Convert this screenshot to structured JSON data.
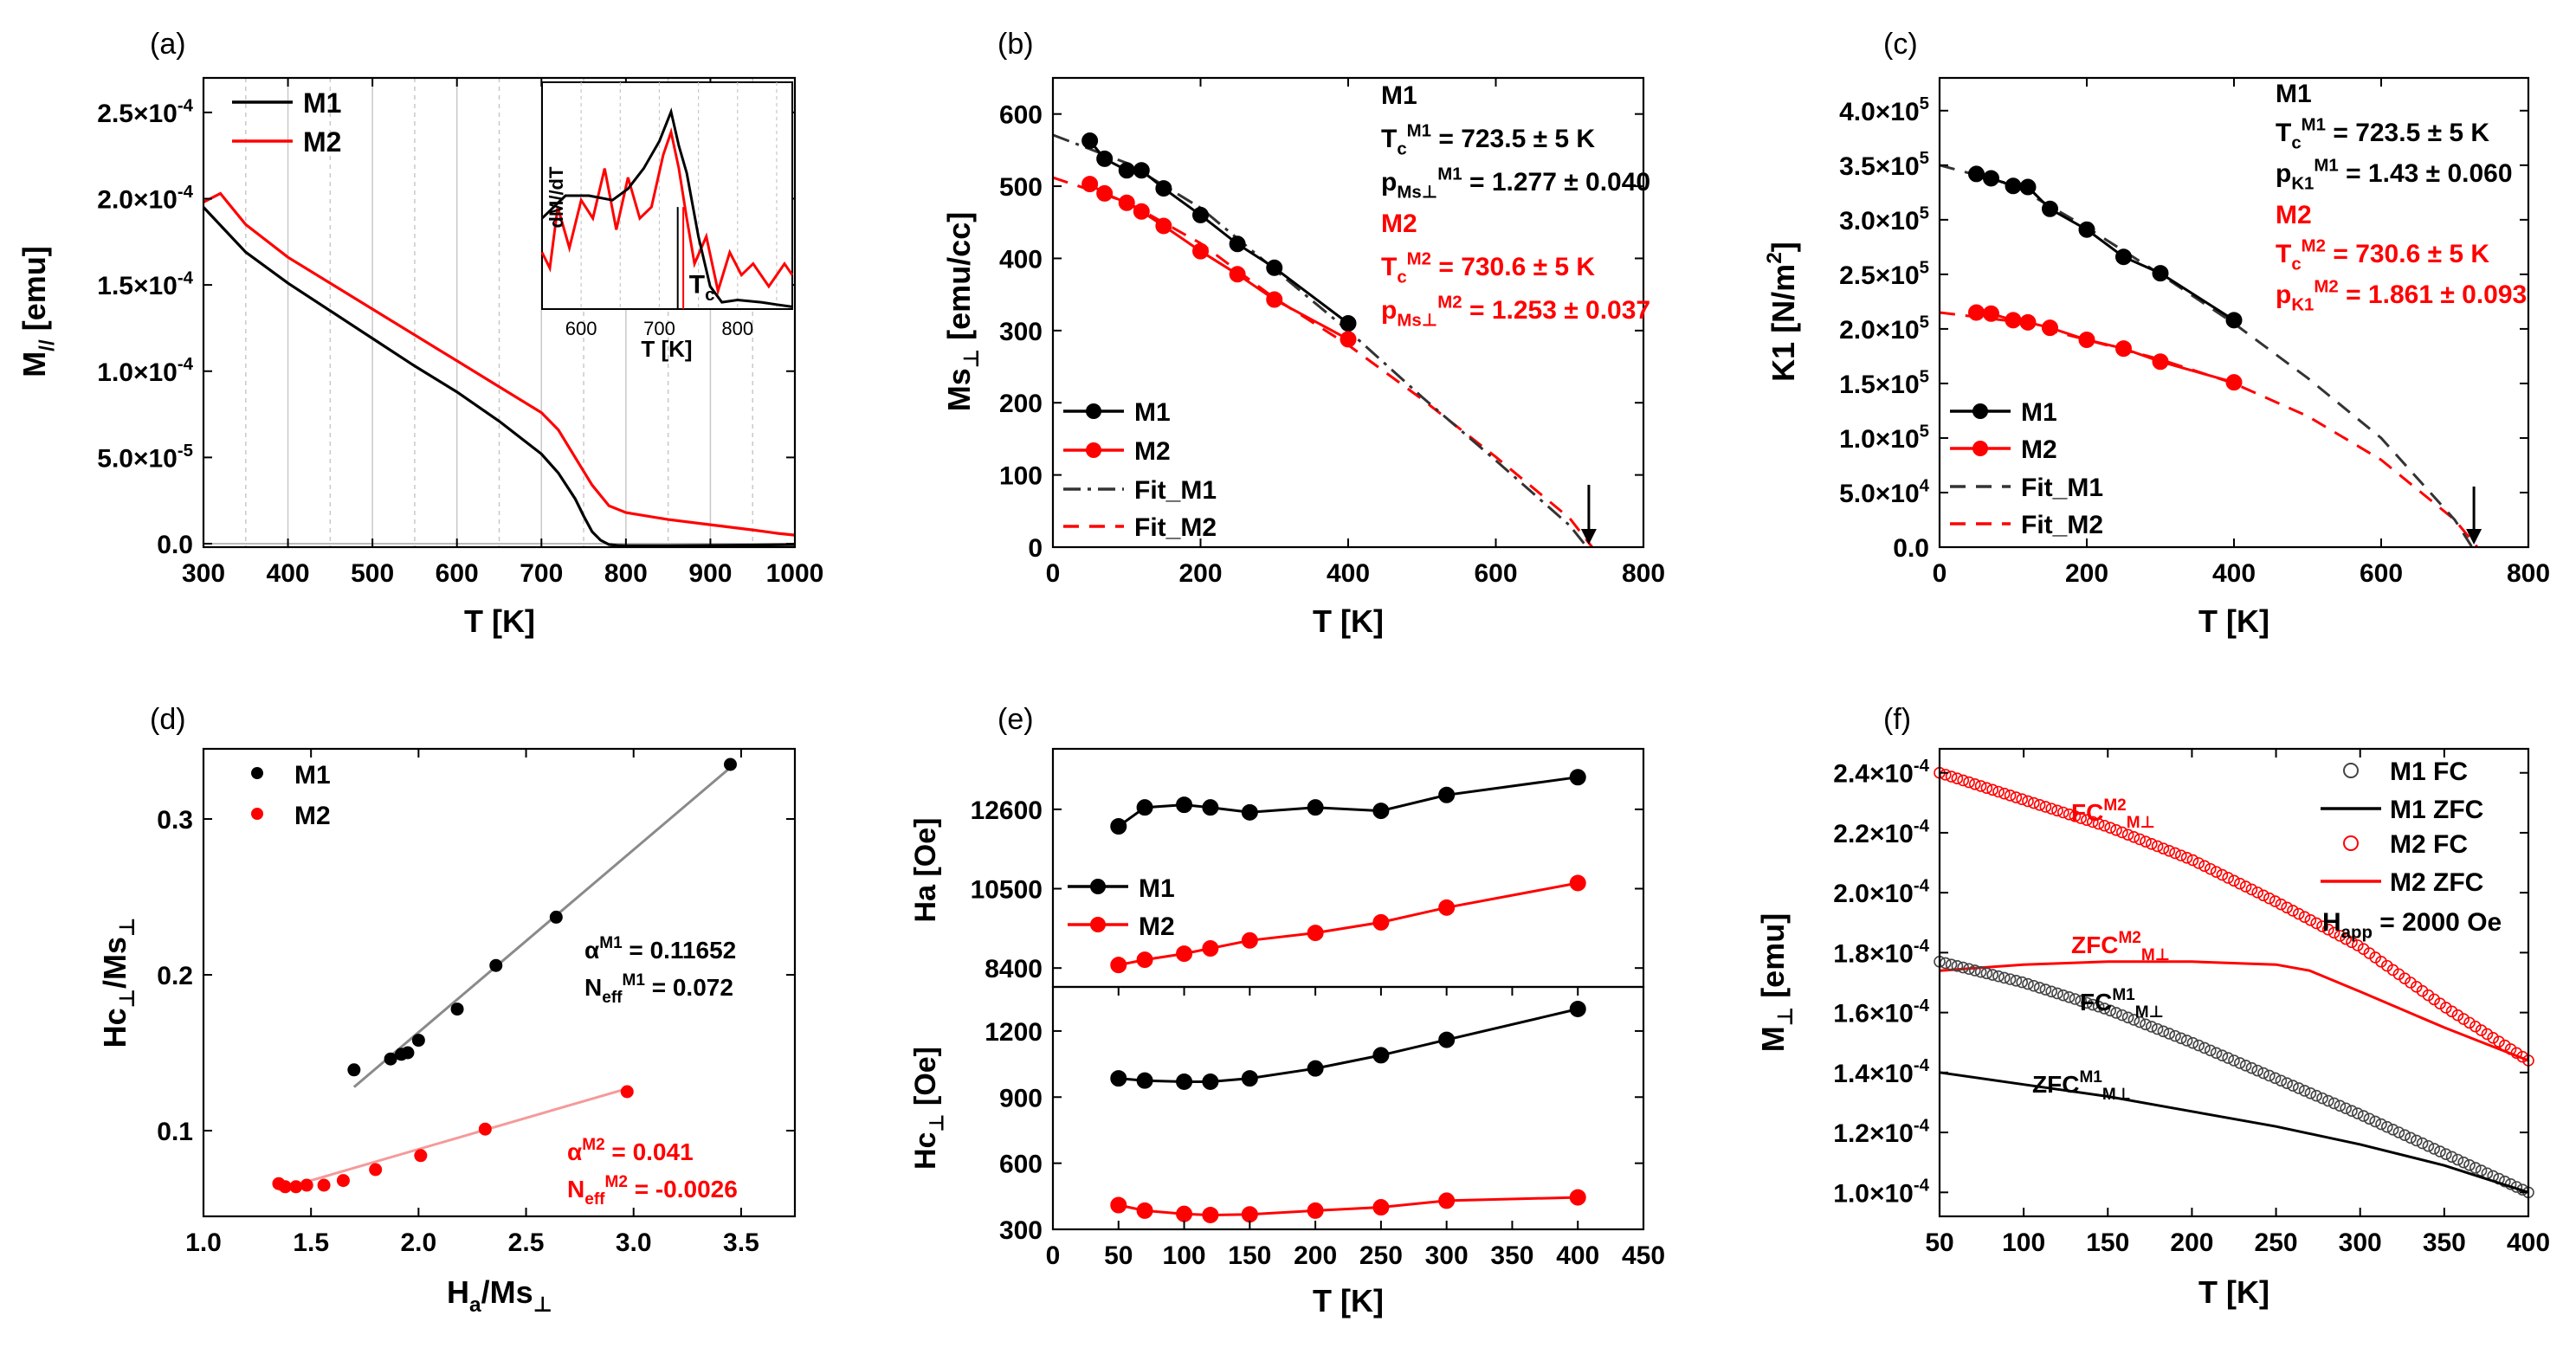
{
  "colors": {
    "m1": "#000000",
    "m2": "#ff0000",
    "fit1": "#333333",
    "lin1": "#8a8a8a",
    "lin2": "#f59a9a",
    "grid": "#c8c8c8"
  },
  "chart_data": [
    {
      "id": "a",
      "label": "(a)",
      "type": "line",
      "xlabel": "T [K]",
      "ylabel": "M",
      "ylabel_sub": "//",
      "ylabel_rest": " [emu]",
      "xlim": [
        300,
        1000
      ],
      "ylim": [
        -2e-06,
        0.00027
      ],
      "xticks": [
        "300",
        "400",
        "500",
        "600",
        "700",
        "800",
        "900",
        "1000"
      ],
      "yticks": [
        {
          "v": 0,
          "m": "0.0",
          "e": ""
        },
        {
          "v": 5e-05,
          "m": "5.0×10",
          "e": "-5"
        },
        {
          "v": 0.0001,
          "m": "1.0×10",
          "e": "-4"
        },
        {
          "v": 0.00015,
          "m": "1.5×10",
          "e": "-4"
        },
        {
          "v": 0.0002,
          "m": "2.0×10",
          "e": "-4"
        },
        {
          "v": 0.00025,
          "m": "2.5×10",
          "e": "-4"
        }
      ],
      "legend": [
        "M1",
        "M2"
      ],
      "series": [
        {
          "name": "M1",
          "x": [
            300,
            350,
            400,
            450,
            500,
            550,
            600,
            650,
            700,
            720,
            740,
            750,
            760,
            770,
            780,
            790,
            800,
            850,
            900,
            950,
            1000
          ],
          "y": [
            0.000195,
            0.000169,
            0.000151,
            0.000135,
            0.000119,
            0.000103,
            8.8e-05,
            7.1e-05,
            5.2e-05,
            4.1e-05,
            2.6e-05,
            1.6e-05,
            7e-06,
            2e-06,
            -5e-07,
            -1e-06,
            -1.2e-06,
            -1.2e-06,
            -1e-06,
            -8e-07,
            -5e-07
          ]
        },
        {
          "name": "M2",
          "x": [
            300,
            320,
            350,
            400,
            450,
            500,
            550,
            600,
            650,
            700,
            720,
            740,
            760,
            780,
            800,
            850,
            900,
            950,
            980,
            1000
          ],
          "y": [
            0.000198,
            0.000203,
            0.000185,
            0.000166,
            0.000151,
            0.000136,
            0.000121,
            0.000106,
            9.1e-05,
            7.6e-05,
            6.6e-05,
            5e-05,
            3.4e-05,
            2.2e-05,
            1.8e-05,
            1.4e-05,
            1.1e-05,
            8e-06,
            6e-06,
            5e-06
          ]
        }
      ],
      "inset": {
        "xlabel": "T [K]",
        "ylabel": "dM//dT",
        "xticks": [
          "600",
          "700",
          "800"
        ],
        "xlim": [
          550,
          870
        ],
        "tc_label": "T",
        "tc_sub": "c",
        "m1": {
          "x": [
            550,
            580,
            610,
            640,
            660,
            680,
            700,
            715,
            725,
            735,
            750,
            765,
            780,
            800,
            830,
            850,
            870
          ],
          "y": [
            0.4,
            0.5,
            0.5,
            0.48,
            0.53,
            0.62,
            0.74,
            0.87,
            0.72,
            0.6,
            0.32,
            0.1,
            0.03,
            0.04,
            0.03,
            0.02,
            0.01
          ]
        },
        "m2": {
          "x": [
            550,
            560,
            570,
            585,
            600,
            615,
            630,
            645,
            660,
            675,
            690,
            705,
            715,
            725,
            735,
            745,
            760,
            775,
            790,
            805,
            820,
            840,
            860,
            870
          ],
          "y": [
            0.25,
            0.18,
            0.45,
            0.27,
            0.48,
            0.4,
            0.62,
            0.35,
            0.58,
            0.4,
            0.45,
            0.68,
            0.78,
            0.62,
            0.4,
            0.2,
            0.32,
            0.08,
            0.25,
            0.15,
            0.2,
            0.1,
            0.2,
            0.15
          ]
        }
      }
    },
    {
      "id": "b",
      "label": "(b)",
      "type": "line",
      "xlabel": "T [K]",
      "ylabel": "Ms",
      "ylabel_sub": "⊥",
      "ylabel_rest": " [emu/cc]",
      "xlim": [
        0,
        800
      ],
      "ylim": [
        0,
        650
      ],
      "xticks": [
        "0",
        "200",
        "400",
        "600",
        "800"
      ],
      "yticks": [
        "0",
        "100",
        "200",
        "300",
        "400",
        "500",
        "600"
      ],
      "legend": [
        "M1",
        "M2",
        "Fit_M1",
        "Fit_M2"
      ],
      "series": [
        {
          "name": "M1",
          "x": [
            50,
            70,
            100,
            120,
            150,
            200,
            250,
            300,
            400
          ],
          "y": [
            563,
            538,
            522,
            522,
            497,
            460,
            420,
            387,
            310
          ]
        },
        {
          "name": "M2",
          "x": [
            50,
            70,
            100,
            120,
            150,
            200,
            250,
            300,
            400
          ],
          "y": [
            503,
            490,
            477,
            465,
            445,
            410,
            378,
            343,
            288
          ]
        },
        {
          "name": "Fit_M1",
          "x": [
            0,
            100,
            200,
            300,
            400,
            500,
            600,
            700,
            723.5
          ],
          "y": [
            571,
            532,
            470,
            385,
            300,
            208,
            120,
            30,
            0
          ]
        },
        {
          "name": "Fit_M2",
          "x": [
            0,
            100,
            200,
            300,
            400,
            500,
            600,
            700,
            730.6
          ],
          "y": [
            512,
            478,
            421,
            345,
            280,
            205,
            125,
            40,
            0
          ]
        }
      ],
      "annotations": {
        "m1_title": "M1",
        "m1_tc": "= 723.5 ± 5 K",
        "m1_p": "= 1.277 ± 0.040",
        "m2_title": "M2",
        "m2_tc": "= 730.6 ± 5 K",
        "m2_p": "= 1.253 ± 0.037",
        "p_sub": "Ms",
        "p_subsub": "⊥"
      }
    },
    {
      "id": "c",
      "label": "(c)",
      "type": "line",
      "xlabel": "T [K]",
      "ylabel": "K1 [N/m",
      "ylabel_sup": "2",
      "ylabel_rest": "]",
      "xlim": [
        0,
        800
      ],
      "ylim": [
        0,
        430000.0
      ],
      "xticks": [
        "0",
        "200",
        "400",
        "600",
        "800"
      ],
      "yticks": [
        {
          "v": 0,
          "m": "0.0",
          "e": ""
        },
        {
          "v": 50000.0,
          "m": "5.0×10",
          "e": "4"
        },
        {
          "v": 100000.0,
          "m": "1.0×10",
          "e": "5"
        },
        {
          "v": 150000.0,
          "m": "1.5×10",
          "e": "5"
        },
        {
          "v": 200000.0,
          "m": "2.0×10",
          "e": "5"
        },
        {
          "v": 250000.0,
          "m": "2.5×10",
          "e": "5"
        },
        {
          "v": 300000.0,
          "m": "3.0×10",
          "e": "5"
        },
        {
          "v": 350000.0,
          "m": "3.5×10",
          "e": "5"
        },
        {
          "v": 400000.0,
          "m": "4.0×10",
          "e": "5"
        }
      ],
      "legend": [
        "M1",
        "M2",
        "Fit_M1",
        "Fit_M2"
      ],
      "series": [
        {
          "name": "M1",
          "x": [
            50,
            70,
            100,
            120,
            150,
            200,
            250,
            300,
            400
          ],
          "y": [
            342000.0,
            338000.0,
            331000.0,
            330000.0,
            310000.0,
            291000.0,
            266000.0,
            251000.0,
            208000.0
          ]
        },
        {
          "name": "M2",
          "x": [
            50,
            70,
            100,
            120,
            150,
            200,
            250,
            300,
            400
          ],
          "y": [
            215000.0,
            214000.0,
            208000.0,
            206000.0,
            201000.0,
            190000.0,
            182000.0,
            170000.0,
            151000.0
          ]
        },
        {
          "name": "Fit_M1",
          "x": [
            0,
            100,
            200,
            300,
            400,
            500,
            600,
            700,
            723.5
          ],
          "y": [
            350000.0,
            332000.0,
            293000.0,
            250000.0,
            205000.0,
            155000.0,
            100000.0,
            25000.0,
            0
          ]
        },
        {
          "name": "Fit_M2",
          "x": [
            0,
            100,
            200,
            300,
            400,
            500,
            600,
            700,
            730.6
          ],
          "y": [
            215000.0,
            207000.0,
            190000.0,
            172000.0,
            150000.0,
            120000.0,
            80000.0,
            25000.0,
            0
          ]
        }
      ],
      "annotations": {
        "m1_title": "M1",
        "m1_tc": "= 723.5 ± 5 K",
        "m1_p": "= 1.43 ± 0.060",
        "m2_title": "M2",
        "m2_tc": "= 730.6 ± 5 K",
        "m2_p": "= 1.861 ± 0.093",
        "p_sub": "K1"
      }
    },
    {
      "id": "d",
      "label": "(d)",
      "type": "scatter",
      "xlabel": "H",
      "xlabel_sub": "a",
      "xlabel_rest": "/Ms",
      "xlabel_sub2": "⊥",
      "ylabel": "Hc",
      "ylabel_sub": "⊥",
      "ylabel_rest": "/Ms",
      "ylabel_sub2": "⊥",
      "xlim": [
        1.0,
        3.75
      ],
      "ylim": [
        0.045,
        0.345
      ],
      "xticks": [
        "1.0",
        "1.5",
        "2.0",
        "2.5",
        "3.0",
        "3.5"
      ],
      "yticks": [
        "0.1",
        "0.2",
        "0.3"
      ],
      "legend": [
        "M1",
        "M2"
      ],
      "series": [
        {
          "name": "M1",
          "x": [
            1.7,
            1.87,
            1.92,
            1.95,
            2.0,
            2.18,
            2.36,
            2.64,
            3.45
          ],
          "y": [
            0.139,
            0.146,
            0.149,
            0.15,
            0.158,
            0.178,
            0.206,
            0.237,
            0.335
          ]
        },
        {
          "name": "M2",
          "x": [
            1.35,
            1.38,
            1.43,
            1.48,
            1.56,
            1.65,
            1.8,
            2.01,
            2.31,
            2.97
          ],
          "y": [
            0.066,
            0.064,
            0.064,
            0.065,
            0.065,
            0.068,
            0.075,
            0.084,
            0.101,
            0.125
          ]
        }
      ],
      "fits": [
        {
          "name": "M1",
          "x": [
            1.7,
            3.45
          ],
          "y": [
            0.128,
            0.333
          ]
        },
        {
          "name": "M2",
          "x": [
            1.35,
            2.97
          ],
          "y": [
            0.062,
            0.127
          ]
        }
      ],
      "annotations": {
        "a1": "= 0.11652",
        "n1": "= 0.072",
        "a2": "= 0.041",
        "n2": "= -0.0026",
        "alpha": "α",
        "neff": "N",
        "neff_sub": "eff",
        "sup1": "M1",
        "sup2": "M2"
      }
    },
    {
      "id": "e",
      "label": "(e)",
      "type": "line",
      "xlabel": "T [K]",
      "xlim": [
        0,
        450
      ],
      "xticks": [
        "0",
        "50",
        "100",
        "150",
        "200",
        "250",
        "300",
        "350",
        "400",
        "450"
      ],
      "top": {
        "ylabel": "Ha [Oe]",
        "ylim": [
          7900,
          14200
        ],
        "yticks": [
          "8400",
          "10500",
          "12600"
        ],
        "series": [
          {
            "name": "M1",
            "x": [
              50,
              70,
              100,
              120,
              150,
              200,
              250,
              300,
              400
            ],
            "y": [
              12150,
              12650,
              12720,
              12650,
              12520,
              12650,
              12560,
              12980,
              13450
            ]
          },
          {
            "name": "M2",
            "x": [
              50,
              70,
              100,
              120,
              150,
              200,
              250,
              300,
              400
            ],
            "y": [
              8480,
              8620,
              8780,
              8920,
              9130,
              9330,
              9610,
              10000,
              10650
            ]
          }
        ]
      },
      "bottom": {
        "ylabel": "Hc",
        "ylabel_sub": "⊥",
        "ylabel_rest": " [Oe]",
        "ylim": [
          300,
          1400
        ],
        "yticks": [
          "300",
          "600",
          "900",
          "1200"
        ],
        "series": [
          {
            "name": "M1",
            "x": [
              50,
              70,
              100,
              120,
              150,
              200,
              250,
              300,
              400
            ],
            "y": [
              985,
              975,
              970,
              970,
              985,
              1030,
              1090,
              1160,
              1300
            ]
          },
          {
            "name": "M2",
            "x": [
              50,
              70,
              100,
              120,
              150,
              200,
              250,
              300,
              400
            ],
            "y": [
              410,
              385,
              370,
              365,
              368,
              385,
              400,
              430,
              445
            ]
          }
        ]
      },
      "legend": [
        "M1",
        "M2"
      ]
    },
    {
      "id": "f",
      "label": "(f)",
      "type": "line",
      "xlabel": "T [K]",
      "ylabel": "M",
      "ylabel_sub": "⊥",
      "ylabel_rest": " [emu]",
      "xlim": [
        50,
        400
      ],
      "ylim": [
        9.2e-05,
        0.000248
      ],
      "xticks": [
        "50",
        "100",
        "150",
        "200",
        "250",
        "300",
        "350",
        "400"
      ],
      "yticks": [
        {
          "v": 0.0001,
          "m": "1.0×10",
          "e": "-4"
        },
        {
          "v": 0.00012,
          "m": "1.2×10",
          "e": "-4"
        },
        {
          "v": 0.00014,
          "m": "1.4×10",
          "e": "-4"
        },
        {
          "v": 0.00016,
          "m": "1.6×10",
          "e": "-4"
        },
        {
          "v": 0.00018,
          "m": "1.8×10",
          "e": "-4"
        },
        {
          "v": 0.0002,
          "m": "2.0×10",
          "e": "-4"
        },
        {
          "v": 0.00022,
          "m": "2.2×10",
          "e": "-4"
        },
        {
          "v": 0.00024,
          "m": "2.4×10",
          "e": "-4"
        }
      ],
      "legend": [
        "M1 FC",
        "M1 ZFC",
        "M2 FC",
        "M2 ZFC"
      ],
      "happ": "= 2000 Oe",
      "happ_label": "H",
      "happ_sub": "app",
      "series": [
        {
          "name": "M1 FC",
          "x": [
            50,
            100,
            150,
            200,
            250,
            300,
            350,
            400
          ],
          "y": [
            0.000177,
            0.00017,
            0.000161,
            0.00015,
            0.000138,
            0.000126,
            0.000113,
            0.0001
          ]
        },
        {
          "name": "M1 ZFC",
          "x": [
            50,
            100,
            150,
            200,
            250,
            300,
            350,
            400
          ],
          "y": [
            0.00014,
            0.000136,
            0.000132,
            0.000127,
            0.000122,
            0.000116,
            0.000109,
            0.0001
          ]
        },
        {
          "name": "M2 FC",
          "x": [
            50,
            100,
            150,
            200,
            250,
            300,
            350,
            400
          ],
          "y": [
            0.00024,
            0.000231,
            0.000222,
            0.000211,
            0.000197,
            0.000182,
            0.000162,
            0.000144
          ]
        },
        {
          "name": "M2 ZFC",
          "x": [
            50,
            100,
            150,
            175,
            200,
            250,
            270,
            300,
            350,
            400
          ],
          "y": [
            0.000174,
            0.000176,
            0.000177,
            0.000177,
            0.000177,
            0.000176,
            0.000174,
            0.000167,
            0.000155,
            0.000144
          ]
        }
      ],
      "curve_labels": {
        "fc": "FC",
        "zfc": "ZFC",
        "m1": "M1",
        "m2": "M2",
        "sub": "M⊥"
      }
    }
  ]
}
